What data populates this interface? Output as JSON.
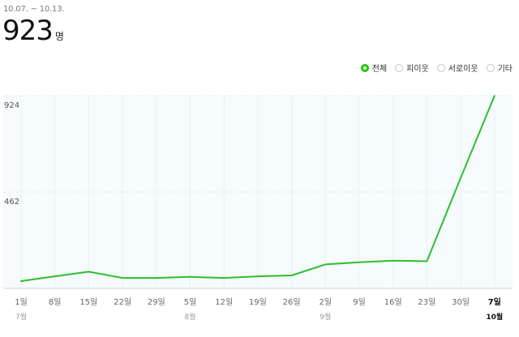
{
  "header": {
    "period": "10.07. ~ 10.13.",
    "total_value": "923",
    "total_unit": "명"
  },
  "legend": {
    "items": [
      {
        "label": "전체",
        "selected": true
      },
      {
        "label": "피이웃",
        "selected": false
      },
      {
        "label": "서로이웃",
        "selected": false
      },
      {
        "label": "기타",
        "selected": false
      }
    ]
  },
  "colors": {
    "line": "#2dbf2d",
    "plot_bg": "#f6fbfd",
    "grid": "#dfe9ee",
    "selected_radio": "#1ec800"
  },
  "chart_data": {
    "type": "line",
    "title": "",
    "xlabel": "",
    "ylabel": "",
    "ylim": [
      0,
      924
    ],
    "y_ticks": [
      462,
      924
    ],
    "grid": true,
    "categories": [
      "1일",
      "8일",
      "15일",
      "22일",
      "29일",
      "5일",
      "12일",
      "19일",
      "26일",
      "2일",
      "9일",
      "16일",
      "23일",
      "30일",
      "7일"
    ],
    "month_labels": [
      {
        "index": 0,
        "label": "7월"
      },
      {
        "index": 5,
        "label": "8월"
      },
      {
        "index": 9,
        "label": "9월"
      },
      {
        "index": 14,
        "label": "10월"
      }
    ],
    "highlight_index": 14,
    "series": [
      {
        "values": [
          35,
          58,
          80,
          50,
          50,
          55,
          50,
          58,
          62,
          115,
          125,
          133,
          130,
          530,
          923
        ]
      }
    ]
  }
}
